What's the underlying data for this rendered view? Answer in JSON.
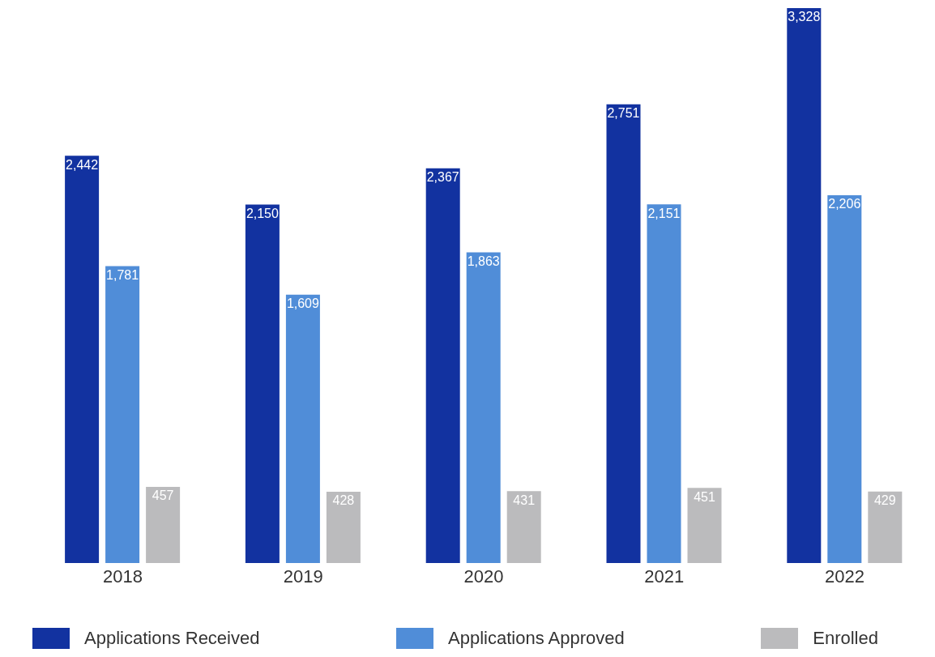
{
  "chart_data": {
    "type": "bar",
    "categories": [
      "2018",
      "2019",
      "2020",
      "2021",
      "2022"
    ],
    "series": [
      {
        "name": "Applications Received",
        "color": "#1232a0",
        "values": [
          2442,
          2150,
          2367,
          2751,
          3328
        ],
        "value_labels": [
          "2,442",
          "2,150",
          "2,367",
          "2,751",
          "3,328"
        ]
      },
      {
        "name": "Applications Approved",
        "color": "#508dd8",
        "values": [
          1781,
          1609,
          1863,
          2151,
          2206
        ],
        "value_labels": [
          "1,781",
          "1,609",
          "1,863",
          "2,151",
          "2,206"
        ]
      },
      {
        "name": "Enrolled",
        "color": "#bbbbbd",
        "values": [
          457,
          428,
          431,
          451,
          429
        ],
        "value_labels": [
          "457",
          "428",
          "431",
          "451",
          "429"
        ]
      }
    ],
    "legend": "bottom",
    "grid": false
  }
}
